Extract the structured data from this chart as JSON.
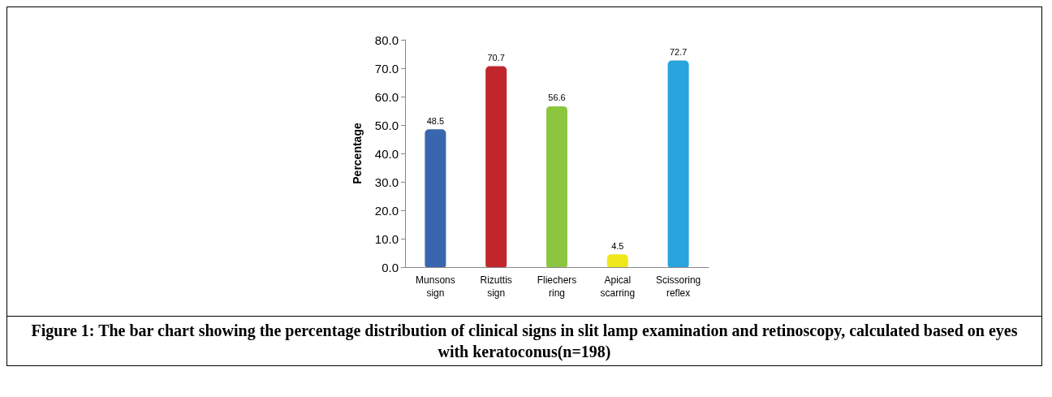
{
  "chart_data": {
    "type": "bar",
    "ylabel": "Percentage",
    "categories": [
      "Munsons sign",
      "Rizuttis sign",
      "Fliechers ring",
      "Apical scarring",
      "Scissoring reflex"
    ],
    "values": [
      48.5,
      70.7,
      56.6,
      4.5,
      72.7
    ],
    "colors": [
      "#3a66b0",
      "#c0272d",
      "#8cc641",
      "#f0e81c",
      "#29a4dc"
    ],
    "data_labels": true,
    "grid": false,
    "ylim": [
      0,
      80
    ],
    "yticks": [
      {
        "value": 0,
        "label": "0.0"
      },
      {
        "value": 10,
        "label": "10.0"
      },
      {
        "value": 20,
        "label": "20.0"
      },
      {
        "value": 30,
        "label": "30.0"
      },
      {
        "value": 40,
        "label": "40.0"
      },
      {
        "value": 50,
        "label": "50.0"
      },
      {
        "value": 60,
        "label": "60.0"
      },
      {
        "value": 70,
        "label": "70.0"
      },
      {
        "value": 80,
        "label": "80.0"
      }
    ],
    "annotations": [
      "Figure 1: The bar chart showing the percentage distribution of clinical signs in slit lamp examination and retinoscopy, calculated based on eyes with keratoconus(n=198)"
    ]
  }
}
